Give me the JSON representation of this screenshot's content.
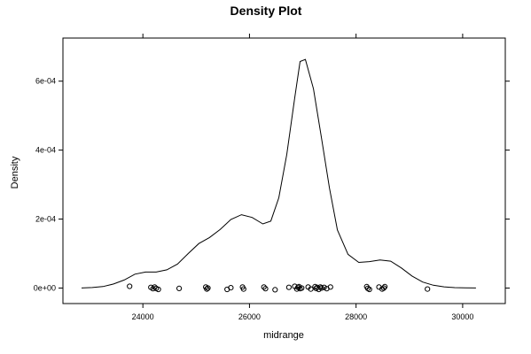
{
  "chart_data": {
    "type": "line",
    "title": "Density Plot",
    "xlabel": "midrange",
    "ylabel": "Density",
    "xlim": [
      22500,
      30800
    ],
    "ylim": [
      -4.5e-05,
      0.000725
    ],
    "x_ticks": [
      24000,
      26000,
      28000,
      30000
    ],
    "y_ticks": [
      0,
      0.0002,
      0.0004,
      0.0006
    ],
    "x_tick_labels": [
      "24000",
      "26000",
      "28000",
      "30000"
    ],
    "y_tick_labels": [
      "0e+00",
      "2e-04",
      "4e-04",
      "6e-04"
    ],
    "grid": false,
    "legend": "none",
    "series": [
      {
        "x": [
          22850,
          23050,
          23250,
          23450,
          23650,
          23850,
          24050,
          24250,
          24450,
          24650,
          24850,
          25050,
          25250,
          25450,
          25650,
          25850,
          26050,
          26250,
          26400,
          26550,
          26700,
          26850,
          26950,
          27050,
          27200,
          27350,
          27500,
          27650,
          27850,
          28050,
          28250,
          28450,
          28650,
          28850,
          29050,
          29250,
          29450,
          29650,
          29850,
          30050,
          30250
        ],
        "y": [
          1e-07,
          1.4e-06,
          4.4e-06,
          1.16e-05,
          2.33e-05,
          4.01e-05,
          4.65e-05,
          4.65e-05,
          5.29e-05,
          6.98e-05,
          0.0001001,
          0.0001291,
          0.0001465,
          0.0001698,
          0.0001988,
          0.0002128,
          0.0002047,
          0.000186,
          0.0001942,
          0.0002616,
          0.0003872,
          0.0005523,
          0.000657,
          0.0006628,
          0.0005779,
          0.000436,
          0.0002907,
          0.0001686,
          9.77e-05,
          7.44e-05,
          7.67e-05,
          8.14e-05,
          7.79e-05,
          5.81e-05,
          3.49e-05,
          1.74e-05,
          8.1e-06,
          3.5e-06,
          1.2e-06,
          5e-07,
          1e-07
        ]
      }
    ],
    "rug": {
      "x": [
        23750,
        24150,
        24190,
        24220,
        24250,
        24290,
        24680,
        25180,
        25200,
        25220,
        25580,
        25650,
        25870,
        25890,
        26270,
        26300,
        26480,
        26740,
        26850,
        26890,
        26910,
        26930,
        26950,
        26980,
        27100,
        27150,
        27230,
        27250,
        27270,
        27300,
        27330,
        27350,
        27400,
        27450,
        27520,
        28200,
        28220,
        28250,
        28430,
        28490,
        28520,
        28540,
        29340
      ],
      "y": [
        5e-06,
        2e-06,
        -2e-06,
        3e-06,
        -1e-06,
        -4e-06,
        -1e-06,
        3e-06,
        -3e-06,
        0.0,
        -4e-06,
        1e-06,
        3e-06,
        -3e-06,
        3e-06,
        -2e-06,
        -5e-06,
        2e-06,
        5e-06,
        -3e-06,
        2e-06,
        4e-06,
        -2e-06,
        0.0,
        3e-06,
        -3e-06,
        4e-06,
        -1e-06,
        2e-06,
        -4e-06,
        3e-06,
        0.0,
        2e-06,
        -2e-06,
        3e-06,
        4e-06,
        -1e-06,
        -4e-06,
        3e-06,
        -3e-06,
        0.0,
        4e-06,
        -3e-06
      ]
    }
  }
}
